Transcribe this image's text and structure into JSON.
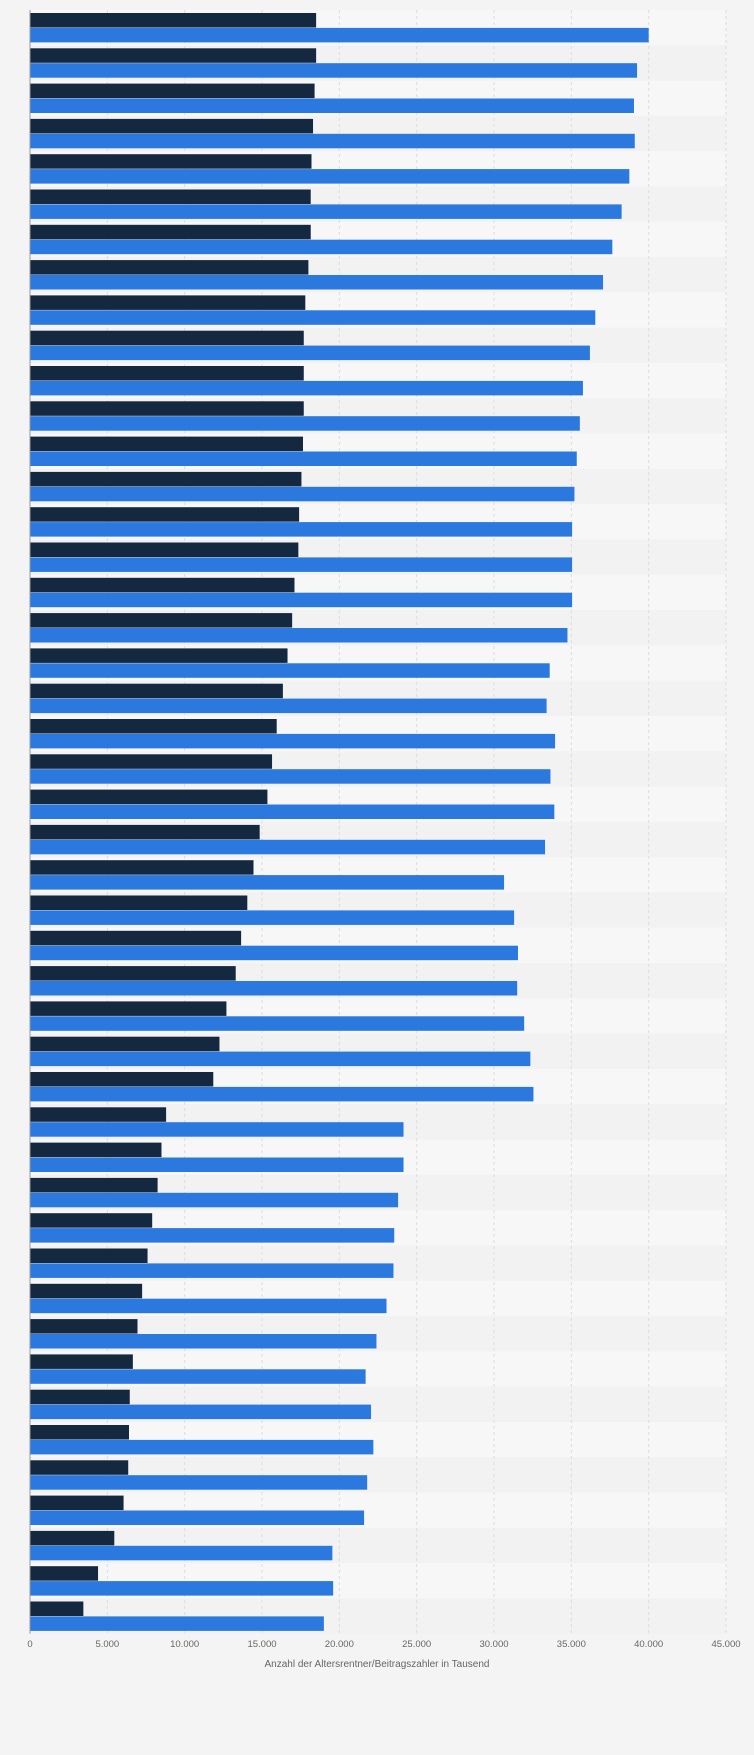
{
  "chart_data": {
    "type": "bar",
    "orientation": "horizontal",
    "xlabel": "Anzahl der Altersrentner/Beitragszahler in Tausend",
    "xlim": [
      0,
      45000
    ],
    "xticks": [
      0,
      5000,
      10000,
      15000,
      20000,
      25000,
      30000,
      35000,
      40000,
      45000
    ],
    "xtick_labels": [
      "0",
      "5.000",
      "10.000",
      "15.000",
      "20.000",
      "25.000",
      "30.000",
      "35.000",
      "40.000",
      "45.000"
    ],
    "grid": true,
    "categories": [
      "",
      "",
      "",
      "",
      "",
      "",
      "",
      "",
      "",
      "",
      "",
      "",
      "",
      "",
      "",
      "",
      "",
      "",
      "",
      "",
      "",
      "",
      "",
      "",
      "",
      "",
      "",
      "",
      "",
      "",
      "",
      "",
      "",
      "",
      "",
      "",
      "",
      "",
      "",
      "",
      "",
      "",
      "",
      "",
      "",
      ""
    ],
    "series": [
      {
        "color": "#14283f",
        "values": [
          18500,
          18500,
          18400,
          18300,
          18200,
          18150,
          18150,
          18000,
          17800,
          17700,
          17700,
          17700,
          17650,
          17550,
          17400,
          17350,
          17100,
          16950,
          16650,
          16350,
          15950,
          15650,
          15350,
          14850,
          14450,
          14050,
          13650,
          13300,
          12700,
          12250,
          11850,
          8800,
          8500,
          8250,
          7900,
          7600,
          7250,
          6950,
          6650,
          6450,
          6400,
          6350,
          6050,
          5450,
          4400,
          3450
        ]
      },
      {
        "color": "#2b78de",
        "values": [
          40000,
          39250,
          39050,
          39100,
          38750,
          38250,
          37650,
          37050,
          36550,
          36200,
          35750,
          35550,
          35350,
          35200,
          35050,
          35050,
          35050,
          34750,
          33600,
          33400,
          33950,
          33650,
          33900,
          33300,
          30650,
          31300,
          31550,
          31500,
          31950,
          32350,
          32550,
          24150,
          24150,
          23800,
          23550,
          23500,
          23050,
          22400,
          21700,
          22050,
          22200,
          21800,
          21600,
          19550,
          19600,
          19000
        ]
      }
    ]
  }
}
